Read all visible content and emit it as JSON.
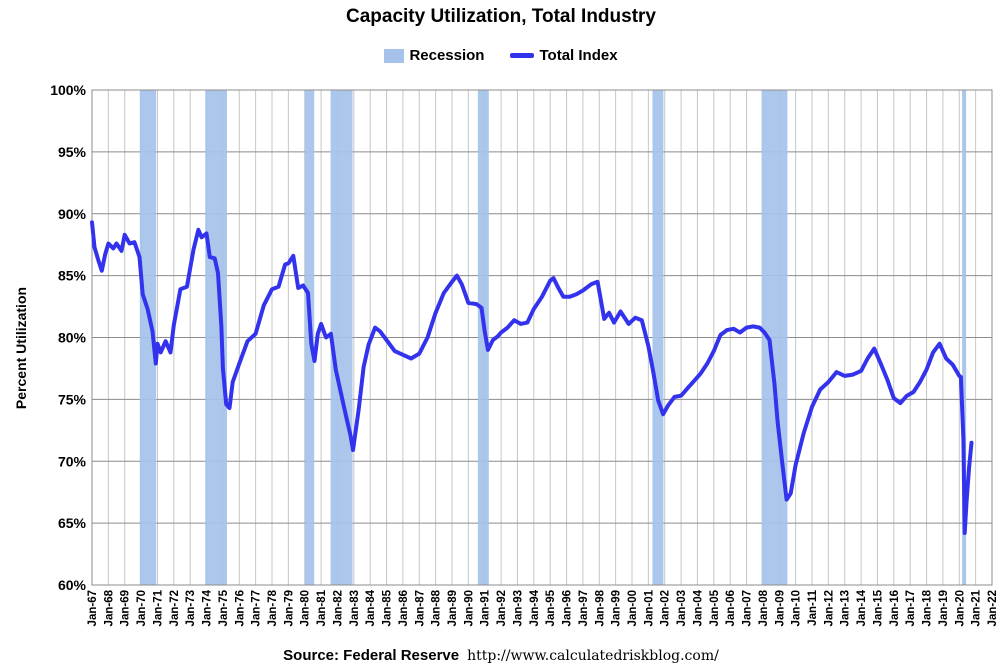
{
  "chart_data": {
    "type": "line",
    "title": "Capacity Utilization, Total Industry",
    "xlabel": "",
    "ylabel": "Percent Utilization",
    "ylim": [
      60,
      100
    ],
    "xlim": [
      1967.0,
      2022.0
    ],
    "yticks": [
      "60%",
      "65%",
      "70%",
      "75%",
      "80%",
      "85%",
      "90%",
      "95%",
      "100%"
    ],
    "xticks": [
      "Jan-67",
      "Jan-68",
      "Jan-69",
      "Jan-70",
      "Jan-71",
      "Jan-72",
      "Jan-73",
      "Jan-74",
      "Jan-75",
      "Jan-76",
      "Jan-77",
      "Jan-78",
      "Jan-79",
      "Jan-80",
      "Jan-81",
      "Jan-82",
      "Jan-83",
      "Jan-84",
      "Jan-85",
      "Jan-86",
      "Jan-87",
      "Jan-88",
      "Jan-89",
      "Jan-90",
      "Jan-91",
      "Jan-92",
      "Jan-93",
      "Jan-94",
      "Jan-95",
      "Jan-96",
      "Jan-97",
      "Jan-98",
      "Jan-99",
      "Jan-00",
      "Jan-01",
      "Jan-02",
      "Jan-03",
      "Jan-04",
      "Jan-05",
      "Jan-06",
      "Jan-07",
      "Jan-08",
      "Jan-09",
      "Jan-10",
      "Jan-11",
      "Jan-12",
      "Jan-13",
      "Jan-14",
      "Jan-15",
      "Jan-16",
      "Jan-17",
      "Jan-18",
      "Jan-19",
      "Jan-20",
      "Jan-21",
      "Jan-22"
    ],
    "legend": [
      {
        "name": "Recession",
        "color": "#a4c2ea"
      },
      {
        "name": "Total Index",
        "color": "#3333ee"
      }
    ],
    "recessions": [
      [
        1969.92,
        1970.92
      ],
      [
        1973.92,
        1975.25
      ],
      [
        1980.0,
        1980.58
      ],
      [
        1981.58,
        1982.92
      ],
      [
        1990.58,
        1991.25
      ],
      [
        2001.25,
        2001.92
      ],
      [
        2007.92,
        2009.5
      ],
      [
        2020.17,
        2020.42
      ]
    ],
    "series": [
      {
        "name": "Total Index",
        "x": [
          1967.0,
          1967.15,
          1967.4,
          1967.6,
          1967.8,
          1968.0,
          1968.3,
          1968.5,
          1968.8,
          1969.0,
          1969.3,
          1969.6,
          1969.9,
          1970.1,
          1970.4,
          1970.7,
          1970.9,
          1971.0,
          1971.2,
          1971.5,
          1971.8,
          1972.0,
          1972.4,
          1972.8,
          1973.2,
          1973.5,
          1973.7,
          1974.0,
          1974.2,
          1974.5,
          1974.7,
          1974.9,
          1975.0,
          1975.2,
          1975.4,
          1975.6,
          1976.0,
          1976.5,
          1977.0,
          1977.5,
          1978.0,
          1978.4,
          1978.8,
          1979.0,
          1979.3,
          1979.6,
          1979.9,
          1980.2,
          1980.4,
          1980.6,
          1980.8,
          1981.0,
          1981.3,
          1981.6,
          1981.9,
          1982.2,
          1982.5,
          1982.8,
          1982.95,
          1983.3,
          1983.6,
          1983.9,
          1984.3,
          1984.6,
          1985.0,
          1985.5,
          1986.0,
          1986.5,
          1987.0,
          1987.5,
          1988.0,
          1988.5,
          1989.0,
          1989.3,
          1989.6,
          1990.0,
          1990.5,
          1990.8,
          1991.0,
          1991.2,
          1991.5,
          1991.8,
          1992.0,
          1992.4,
          1992.8,
          1993.2,
          1993.6,
          1994.0,
          1994.5,
          1995.0,
          1995.2,
          1995.5,
          1995.8,
          1996.2,
          1996.6,
          1997.0,
          1997.5,
          1997.9,
          1998.3,
          1998.6,
          1998.9,
          1999.3,
          1999.8,
          2000.2,
          2000.6,
          2001.0,
          2001.3,
          2001.6,
          2001.9,
          2002.2,
          2002.6,
          2003.0,
          2003.4,
          2003.8,
          2004.2,
          2004.6,
          2005.0,
          2005.4,
          2005.8,
          2006.2,
          2006.6,
          2007.0,
          2007.4,
          2007.8,
          2008.1,
          2008.4,
          2008.7,
          2008.9,
          2009.2,
          2009.45,
          2009.7,
          2010.0,
          2010.5,
          2011.0,
          2011.5,
          2012.0,
          2012.5,
          2013.0,
          2013.5,
          2014.0,
          2014.4,
          2014.8,
          2015.2,
          2015.6,
          2016.0,
          2016.4,
          2016.8,
          2017.2,
          2017.6,
          2018.0,
          2018.4,
          2018.8,
          2019.2,
          2019.6,
          2020.0,
          2020.1,
          2020.25,
          2020.33,
          2020.45,
          2020.6,
          2020.75
        ],
        "values": [
          89.3,
          87.3,
          86.2,
          85.4,
          86.7,
          87.6,
          87.2,
          87.6,
          87.0,
          88.3,
          87.6,
          87.7,
          86.5,
          83.5,
          82.3,
          80.5,
          77.9,
          79.5,
          78.8,
          79.7,
          78.8,
          81.0,
          83.9,
          84.1,
          87.1,
          88.7,
          88.1,
          88.4,
          86.5,
          86.4,
          85.2,
          81.0,
          77.5,
          74.6,
          74.3,
          76.4,
          77.9,
          79.7,
          80.3,
          82.6,
          83.9,
          84.1,
          85.9,
          86.0,
          86.6,
          84.0,
          84.2,
          83.6,
          79.5,
          78.1,
          80.3,
          81.1,
          80.0,
          80.3,
          77.4,
          75.6,
          73.8,
          72.1,
          70.9,
          74.2,
          77.6,
          79.4,
          80.8,
          80.5,
          79.8,
          78.9,
          78.6,
          78.3,
          78.7,
          80.0,
          82.0,
          83.6,
          84.5,
          85.0,
          84.3,
          82.8,
          82.7,
          82.4,
          80.5,
          79.0,
          79.8,
          80.1,
          80.4,
          80.8,
          81.4,
          81.1,
          81.2,
          82.3,
          83.3,
          84.6,
          84.8,
          84.0,
          83.3,
          83.3,
          83.5,
          83.8,
          84.3,
          84.5,
          81.5,
          82.0,
          81.2,
          82.1,
          81.1,
          81.6,
          81.4,
          79.3,
          77.2,
          74.9,
          73.8,
          74.5,
          75.2,
          75.3,
          75.9,
          76.5,
          77.1,
          77.9,
          78.9,
          80.2,
          80.6,
          80.7,
          80.4,
          80.8,
          80.9,
          80.8,
          80.4,
          79.8,
          76.3,
          73.2,
          69.7,
          66.9,
          67.4,
          69.7,
          72.3,
          74.4,
          75.8,
          76.4,
          77.2,
          76.9,
          77.0,
          77.3,
          78.3,
          79.1,
          77.9,
          76.6,
          75.1,
          74.7,
          75.3,
          75.6,
          76.4,
          77.4,
          78.8,
          79.5,
          78.3,
          77.8,
          76.9,
          76.8,
          71.8,
          64.2,
          66.8,
          69.5,
          71.5
        ]
      }
    ]
  },
  "source": {
    "label": "Source: Federal Reserve",
    "url": "http://www.calculatedriskblog.com/"
  }
}
